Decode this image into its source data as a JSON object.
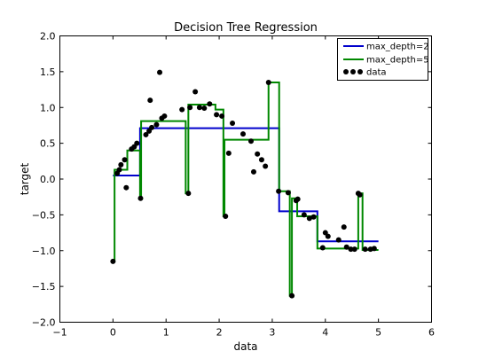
{
  "chart_data": {
    "type": "line",
    "title": "Decision Tree Regression",
    "xlabel": "data",
    "ylabel": "target",
    "xlim": [
      -1,
      6
    ],
    "ylim": [
      -2.0,
      2.0
    ],
    "xticks": [
      -1,
      0,
      1,
      2,
      3,
      4,
      5,
      6
    ],
    "xtick_labels": [
      "−1",
      "0",
      "1",
      "2",
      "3",
      "4",
      "5",
      "6"
    ],
    "yticks": [
      -2.0,
      -1.5,
      -1.0,
      -0.5,
      0.0,
      0.5,
      1.0,
      1.5,
      2.0
    ],
    "ytick_labels": [
      "−2.0",
      "−1.5",
      "−1.0",
      "−0.5",
      "0.0",
      "0.5",
      "1.0",
      "1.5",
      "2.0"
    ],
    "grid": false,
    "legend_position": "top-right",
    "series": [
      {
        "name": "max_depth=2",
        "kind": "step-line",
        "color": "#0000cc",
        "x": [
          0.0,
          0.51,
          0.51,
          3.13,
          3.13,
          3.85,
          3.85,
          5.0
        ],
        "y": [
          0.05,
          0.05,
          0.71,
          0.71,
          -0.45,
          -0.45,
          -0.87,
          -0.87
        ]
      },
      {
        "name": "max_depth=5",
        "kind": "step-line",
        "color": "#008800",
        "x": [
          0.0,
          0.03,
          0.03,
          0.27,
          0.27,
          0.51,
          0.51,
          0.53,
          0.53,
          1.37,
          1.37,
          1.42,
          1.42,
          1.93,
          1.93,
          2.08,
          2.08,
          2.1,
          2.1,
          2.93,
          2.93,
          3.13,
          3.13,
          3.33,
          3.33,
          3.37,
          3.37,
          3.47,
          3.47,
          3.85,
          3.85,
          4.62,
          4.62,
          4.7,
          4.7,
          5.0
        ],
        "y": [
          -1.15,
          -1.15,
          0.13,
          0.13,
          0.4,
          0.4,
          -0.27,
          -0.27,
          0.81,
          0.81,
          -0.2,
          -0.2,
          1.04,
          1.04,
          0.97,
          0.97,
          -0.52,
          -0.52,
          0.55,
          0.55,
          1.35,
          1.35,
          -0.17,
          -0.17,
          -1.63,
          -1.63,
          -0.27,
          -0.27,
          -0.52,
          -0.52,
          -0.97,
          -0.97,
          -0.2,
          -0.2,
          -0.99,
          -0.99
        ]
      },
      {
        "name": "data",
        "kind": "scatter",
        "color": "#000000",
        "points": [
          [
            0.0,
            -1.15
          ],
          [
            0.08,
            0.08
          ],
          [
            0.12,
            0.13
          ],
          [
            0.15,
            0.2
          ],
          [
            0.22,
            0.27
          ],
          [
            0.25,
            -0.12
          ],
          [
            0.35,
            0.42
          ],
          [
            0.4,
            0.45
          ],
          [
            0.45,
            0.5
          ],
          [
            0.52,
            -0.27
          ],
          [
            0.62,
            0.62
          ],
          [
            0.68,
            0.67
          ],
          [
            0.73,
            0.72
          ],
          [
            0.82,
            0.76
          ],
          [
            0.88,
            1.49
          ],
          [
            0.92,
            0.85
          ],
          [
            0.97,
            0.88
          ],
          [
            0.7,
            1.1
          ],
          [
            1.3,
            0.97
          ],
          [
            1.42,
            -0.2
          ],
          [
            1.45,
            1.0
          ],
          [
            1.55,
            1.22
          ],
          [
            1.63,
            1.0
          ],
          [
            1.72,
            0.99
          ],
          [
            1.82,
            1.05
          ],
          [
            1.95,
            0.9
          ],
          [
            2.05,
            0.88
          ],
          [
            2.12,
            -0.52
          ],
          [
            2.18,
            0.36
          ],
          [
            2.25,
            0.78
          ],
          [
            2.45,
            0.63
          ],
          [
            2.6,
            0.53
          ],
          [
            2.65,
            0.1
          ],
          [
            2.72,
            0.35
          ],
          [
            2.8,
            0.27
          ],
          [
            2.87,
            0.18
          ],
          [
            2.93,
            1.35
          ],
          [
            3.12,
            -0.17
          ],
          [
            3.3,
            -0.19
          ],
          [
            3.37,
            -1.63
          ],
          [
            3.45,
            -0.3
          ],
          [
            3.48,
            -0.28
          ],
          [
            3.6,
            -0.5
          ],
          [
            3.7,
            -0.55
          ],
          [
            3.78,
            -0.53
          ],
          [
            3.95,
            -0.96
          ],
          [
            4.0,
            -0.75
          ],
          [
            4.05,
            -0.8
          ],
          [
            4.25,
            -0.85
          ],
          [
            4.35,
            -0.67
          ],
          [
            4.4,
            -0.95
          ],
          [
            4.48,
            -0.98
          ],
          [
            4.55,
            -0.98
          ],
          [
            4.62,
            -0.2
          ],
          [
            4.65,
            -0.22
          ],
          [
            4.75,
            -0.98
          ],
          [
            4.85,
            -0.98
          ],
          [
            4.92,
            -0.97
          ]
        ]
      }
    ]
  }
}
